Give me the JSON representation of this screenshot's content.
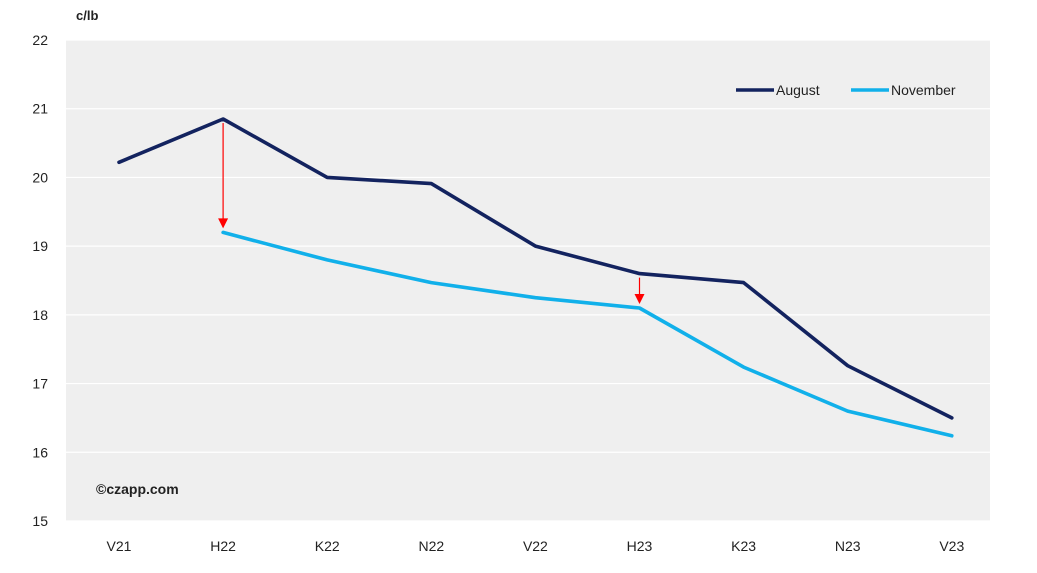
{
  "chart_data": {
    "type": "line",
    "title": "",
    "xlabel": "",
    "ylabel": "c/lb",
    "categories": [
      "V21",
      "H22",
      "K22",
      "N22",
      "V22",
      "H23",
      "K23",
      "N23",
      "V23"
    ],
    "ylim": [
      15,
      22
    ],
    "yticks": [
      15,
      16,
      17,
      18,
      19,
      20,
      21,
      22
    ],
    "grid": true,
    "legend_position": "top-right",
    "series": [
      {
        "name": "August",
        "color": "#13235f",
        "values": [
          20.22,
          20.85,
          20.0,
          19.91,
          19.0,
          18.6,
          18.47,
          17.26,
          16.5
        ]
      },
      {
        "name": "November",
        "color": "#11b0ea",
        "values": [
          null,
          19.2,
          18.8,
          18.47,
          18.25,
          18.1,
          17.24,
          16.6,
          16.24
        ]
      }
    ],
    "annotations": [
      {
        "type": "arrow",
        "color": "#ff0000",
        "category": "H22",
        "from": 20.85,
        "to": 19.2
      },
      {
        "type": "arrow",
        "color": "#ff0000",
        "category": "H23",
        "from": 18.6,
        "to": 18.1
      }
    ],
    "watermark": "©czapp.com"
  }
}
